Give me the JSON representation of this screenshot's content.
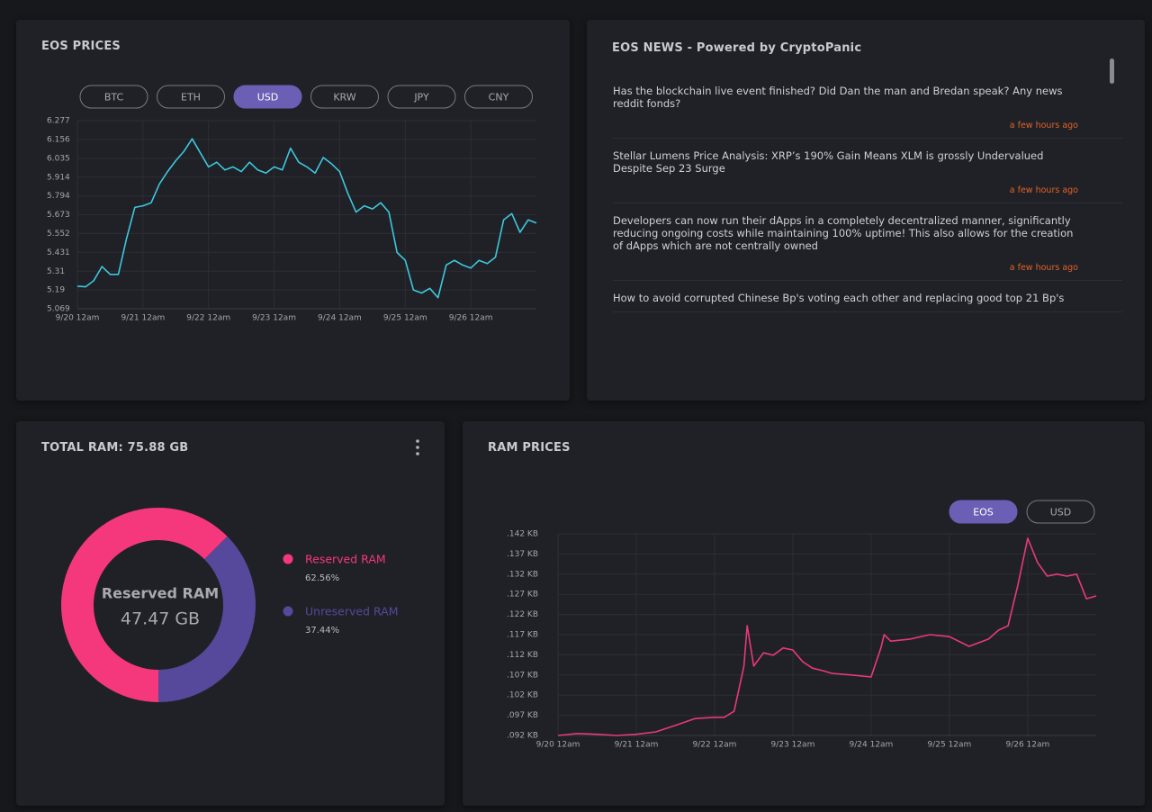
{
  "chart_data": [
    {
      "type": "line",
      "title": "EOS PRICES",
      "buttons": [
        "BTC",
        "ETH",
        "USD",
        "KRW",
        "JPY",
        "CNY"
      ],
      "selected_button": 2,
      "color": "#3cc8de",
      "x": [
        0,
        3,
        6,
        9,
        12,
        15,
        18,
        21,
        24,
        27,
        30,
        33,
        36,
        39,
        42,
        45,
        48,
        51,
        54,
        57,
        60,
        63,
        66,
        69,
        72,
        75,
        78,
        81,
        84,
        87,
        90,
        93,
        96,
        99,
        102,
        105,
        108,
        111,
        114,
        117,
        120,
        123,
        126,
        129,
        132,
        135,
        138,
        141,
        144,
        147,
        150,
        153,
        156,
        159,
        162,
        165,
        168
      ],
      "values": [
        5.214,
        5.21,
        5.25,
        5.34,
        5.29,
        5.29,
        5.52,
        5.72,
        5.73,
        5.75,
        5.87,
        5.95,
        6.02,
        6.08,
        6.16,
        6.07,
        5.98,
        6.01,
        5.96,
        5.98,
        5.95,
        6.01,
        5.96,
        5.94,
        5.98,
        5.96,
        6.1,
        6.01,
        5.98,
        5.94,
        6.04,
        6.0,
        5.95,
        5.81,
        5.69,
        5.73,
        5.71,
        5.75,
        5.69,
        5.43,
        5.38,
        5.19,
        5.17,
        5.2,
        5.14,
        5.35,
        5.38,
        5.35,
        5.33,
        5.38,
        5.36,
        5.4,
        5.64,
        5.68,
        5.56,
        5.64,
        5.62
      ],
      "xlim": [
        0,
        168
      ],
      "xticks": [
        {
          "value": 0,
          "label": "9/20 12am"
        },
        {
          "value": 24,
          "label": "9/21 12am"
        },
        {
          "value": 48,
          "label": "9/22 12am"
        },
        {
          "value": 72,
          "label": "9/23 12am"
        },
        {
          "value": 96,
          "label": "9/24 12am"
        },
        {
          "value": 120,
          "label": "9/25 12am"
        },
        {
          "value": 144,
          "label": "9/26 12am"
        }
      ],
      "ylim": [
        5.069,
        6.277
      ],
      "yticks": [
        5.069,
        5.19,
        5.31,
        5.431,
        5.552,
        5.673,
        5.794,
        5.914,
        6.035,
        6.156,
        6.277
      ],
      "grid": true
    },
    {
      "type": "pie",
      "title": "TOTAL RAM: 75.88 GB",
      "categories": [
        "Reserved RAM",
        "Unreserved RAM"
      ],
      "values": [
        62.56,
        37.44
      ],
      "value_labels": [
        "62.56%",
        "37.44%"
      ],
      "colors": [
        "#f5387b",
        "#56489a"
      ],
      "center_label": "Reserved RAM",
      "center_value": "47.47 GB"
    },
    {
      "type": "line",
      "title": "RAM PRICES",
      "buttons": [
        "EOS",
        "USD"
      ],
      "selected_button": 0,
      "color": "#e8397a",
      "x": [
        0,
        6,
        12,
        18,
        24,
        30,
        36,
        42,
        48,
        51,
        54,
        57,
        58,
        60,
        63,
        66,
        69,
        72,
        75,
        78,
        81,
        84,
        90,
        96,
        99,
        100,
        102,
        108,
        114,
        120,
        126,
        132,
        135,
        138,
        141,
        144,
        147,
        150,
        153,
        156,
        159,
        162,
        165
      ],
      "values": [
        0.092,
        0.0925,
        0.0923,
        0.092,
        0.0923,
        0.0929,
        0.0945,
        0.0962,
        0.0965,
        0.0965,
        0.098,
        0.1092,
        0.1192,
        0.1092,
        0.1125,
        0.1119,
        0.1137,
        0.1132,
        0.1103,
        0.1087,
        0.1081,
        0.1074,
        0.107,
        0.1065,
        0.1137,
        0.117,
        0.1154,
        0.1159,
        0.117,
        0.1165,
        0.1141,
        0.1159,
        0.1181,
        0.1192,
        0.1293,
        0.1409,
        0.1349,
        0.1315,
        0.132,
        0.1315,
        0.132,
        0.1259,
        0.1266
      ],
      "xlim": [
        0,
        165
      ],
      "xticks": [
        {
          "value": 0,
          "label": "9/20 12am"
        },
        {
          "value": 24,
          "label": "9/21 12am"
        },
        {
          "value": 48,
          "label": "9/22 12am"
        },
        {
          "value": 72,
          "label": "9/23 12am"
        },
        {
          "value": 96,
          "label": "9/24 12am"
        },
        {
          "value": 120,
          "label": "9/25 12am"
        },
        {
          "value": 144,
          "label": "9/26 12am"
        }
      ],
      "ylim": [
        0.092,
        0.142
      ],
      "yticks": [
        {
          "value": 0.092,
          "label": ".092 KB"
        },
        {
          "value": 0.097,
          "label": ".097 KB"
        },
        {
          "value": 0.102,
          "label": ".102 KB"
        },
        {
          "value": 0.107,
          "label": ".107 KB"
        },
        {
          "value": 0.112,
          "label": ".112 KB"
        },
        {
          "value": 0.117,
          "label": ".117 KB"
        },
        {
          "value": 0.122,
          "label": ".122 KB"
        },
        {
          "value": 0.127,
          "label": ".127 KB"
        },
        {
          "value": 0.132,
          "label": ".132 KB"
        },
        {
          "value": 0.137,
          "label": ".137 KB"
        },
        {
          "value": 0.142,
          "label": ".142 KB"
        }
      ],
      "grid": true
    }
  ],
  "news": {
    "title": "EOS NEWS - Powered by CryptoPanic",
    "items": [
      {
        "title": "Has the blockchain live event finished? Did Dan the man and Bredan speak? Any news reddit fonds?",
        "time": "a few hours ago"
      },
      {
        "title": "Stellar Lumens Price Analysis: XRP’s 190% Gain Means XLM is grossly Undervalued Despite Sep 23 Surge",
        "time": "a few hours ago"
      },
      {
        "title": "Developers can now run their dApps in a completely decentralized manner, significantly reducing ongoing costs while maintaining 100% uptime! This also allows for the creation of dApps which are not centrally owned",
        "time": "a few hours ago"
      },
      {
        "title": "How to avoid corrupted Chinese Bp's voting each other and replacing good top 21 Bp's"
      }
    ]
  }
}
